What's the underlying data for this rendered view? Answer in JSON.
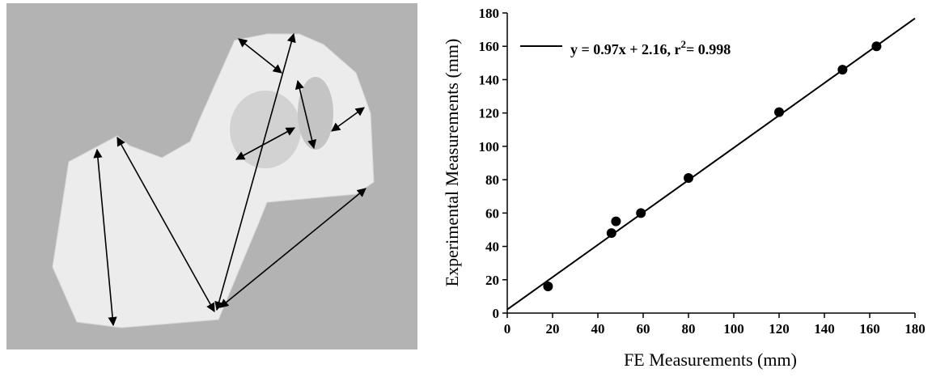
{
  "chart_data": {
    "type": "scatter",
    "x_label": "FE Measurements (mm)",
    "y_label": "Experimental Measurements (mm)",
    "x": [
      18,
      46,
      48,
      59,
      80,
      120,
      148,
      163
    ],
    "series": [
      {
        "color": "#000000",
        "values": [
          16,
          48,
          55,
          60,
          81,
          120.5,
          146,
          160
        ]
      }
    ],
    "fit": {
      "name": "y = 0.97x + 2.16, r",
      "name_sup": "2",
      "name_end": "= 0.998",
      "slope": 0.97,
      "intercept": 2.16,
      "color": "#000000"
    },
    "xlim": [
      0,
      180
    ],
    "xticks": [
      0,
      20,
      40,
      60,
      80,
      100,
      120,
      140,
      160,
      180
    ],
    "ylim": [
      0,
      180
    ],
    "yticks": [
      0,
      20,
      40,
      60,
      80,
      100,
      120,
      140,
      160,
      180
    ],
    "grid": false
  }
}
